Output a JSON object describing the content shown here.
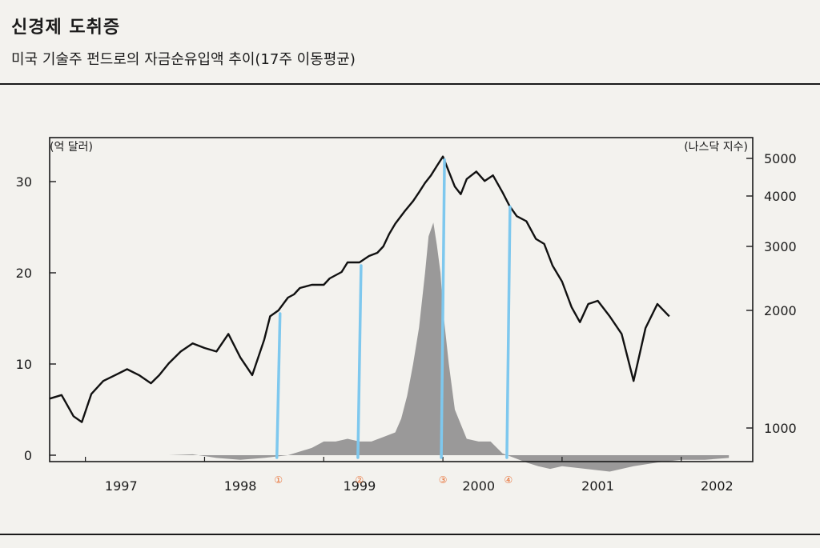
{
  "header": {
    "title": "신경제 도취증",
    "subtitle": "미국 기술주 펀드로의 자금순유입액 추이(17주 이동평균)"
  },
  "chart_data": {
    "type": "area",
    "left_unit": "(억 달러)",
    "right_unit": "(나스닥 지수)",
    "x_labels": [
      "1997",
      "1998",
      "1999",
      "2000",
      "2001",
      "2002"
    ],
    "left_ticks": [
      0,
      10,
      20,
      30
    ],
    "right_ticks": [
      1000,
      2000,
      3000,
      4000,
      5000
    ],
    "left_ylim": [
      0,
      35
    ],
    "right_ylim": [
      800,
      5100
    ],
    "xlim": [
      1996.7,
      2002.6
    ],
    "colors": {
      "flow": "#8a8a8a",
      "nasdaq": "#111111",
      "marker": "#7ec8ee",
      "marker_label": "#e8743b"
    },
    "fund_flow": {
      "x": [
        1996.7,
        1996.9,
        1997.2,
        1997.4,
        1997.5,
        1997.7,
        1997.9,
        1998.1,
        1998.3,
        1998.5,
        1998.7,
        1998.9,
        1999.0,
        1999.1,
        1999.2,
        1999.3,
        1999.4,
        1999.5,
        1999.6,
        1999.65,
        1999.7,
        1999.75,
        1999.8,
        1999.85,
        1999.88,
        1999.92,
        1999.95,
        1999.98,
        2000.0,
        2000.05,
        2000.1,
        2000.2,
        2000.3,
        2000.4,
        2000.5,
        2000.6,
        2000.7,
        2000.8,
        2000.9,
        2001.0,
        2001.2,
        2001.4,
        2001.6,
        2001.8,
        2002.0,
        2002.2,
        2002.4
      ],
      "values": [
        0.0,
        0.0,
        0.0,
        0.0,
        0.0,
        0.0,
        0.1,
        -0.3,
        -0.5,
        -0.3,
        0.0,
        0.8,
        1.5,
        1.5,
        1.8,
        1.5,
        1.5,
        2.0,
        2.5,
        4.0,
        6.5,
        10.0,
        14.0,
        20.0,
        24.0,
        25.5,
        23.0,
        20.0,
        16.0,
        10.0,
        5.0,
        1.8,
        1.5,
        1.5,
        0.2,
        -0.3,
        -0.8,
        -1.2,
        -1.5,
        -1.2,
        -1.5,
        -1.8,
        -1.2,
        -0.8,
        -0.5,
        -0.5,
        -0.3
      ]
    },
    "nasdaq": {
      "x": [
        1996.7,
        1996.8,
        1996.9,
        1996.97,
        1997.05,
        1997.15,
        1997.25,
        1997.35,
        1997.45,
        1997.55,
        1997.62,
        1997.7,
        1997.8,
        1997.9,
        1998.0,
        1998.1,
        1998.2,
        1998.3,
        1998.4,
        1998.5,
        1998.55,
        1998.62,
        1998.7,
        1998.75,
        1998.8,
        1998.9,
        1999.0,
        1999.05,
        1999.1,
        1999.15,
        1999.2,
        1999.3,
        1999.38,
        1999.45,
        1999.5,
        1999.55,
        1999.6,
        1999.68,
        1999.75,
        1999.8,
        1999.85,
        1999.9,
        1999.95,
        2000.0,
        2000.05,
        2000.1,
        2000.15,
        2000.2,
        2000.28,
        2000.35,
        2000.42,
        2000.5,
        2000.56,
        2000.62,
        2000.7,
        2000.78,
        2000.85,
        2000.92,
        2001.0,
        2001.08,
        2001.15,
        2001.22,
        2001.3,
        2001.4,
        2001.5,
        2001.6,
        2001.7,
        2001.8,
        2001.9
      ],
      "values": [
        1250,
        1280,
        1100,
        1050,
        1290,
        1400,
        1450,
        1500,
        1450,
        1380,
        1450,
        1550,
        1650,
        1720,
        1680,
        1650,
        1800,
        1600,
        1450,
        1750,
        1950,
        2000,
        2200,
        2250,
        2350,
        2400,
        2400,
        2500,
        2550,
        2600,
        2750,
        2750,
        2850,
        2900,
        3000,
        3250,
        3450,
        3700,
        3900,
        4100,
        4350,
        4550,
        4800,
        5050,
        4650,
        4250,
        4050,
        4450,
        4650,
        4400,
        4550,
        4100,
        3800,
        3600,
        3500,
        3150,
        3050,
        2700,
        2450,
        2050,
        1900,
        2100,
        2150,
        1950,
        1800,
        1400,
        1850,
        2100,
        1950
      ]
    },
    "markers": [
      {
        "label": "①",
        "x": 1998.62
      },
      {
        "label": "②",
        "x": 1999.3
      },
      {
        "label": "③",
        "x": 2000.0
      },
      {
        "label": "④",
        "x": 2000.55
      }
    ]
  }
}
